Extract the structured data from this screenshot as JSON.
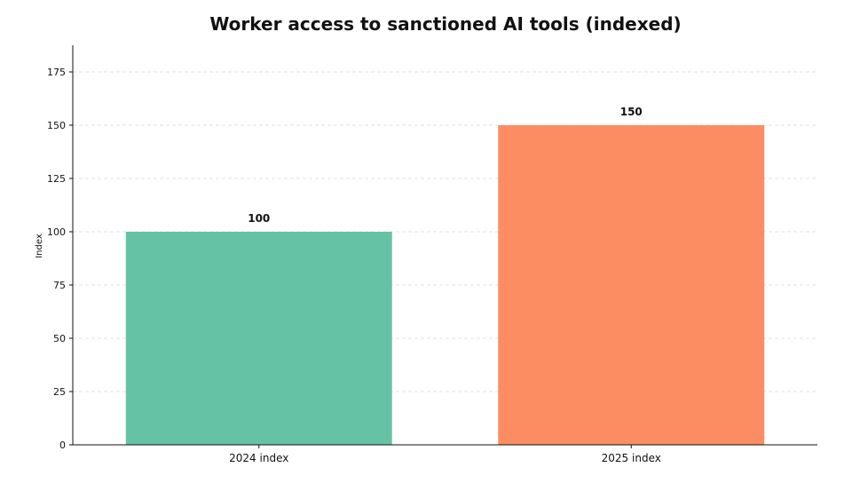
{
  "chart_data": {
    "type": "bar",
    "title": "Worker access to sanctioned AI tools (indexed)",
    "xlabel": "",
    "ylabel": "Index",
    "categories": [
      "2024 index",
      "2025 index"
    ],
    "values": [
      100,
      150
    ],
    "value_labels": [
      "100",
      "150"
    ],
    "colors": [
      "#66c2a5",
      "#fc8d62"
    ],
    "ylim": [
      0,
      187.5
    ],
    "yticks": [
      0,
      25,
      50,
      75,
      100,
      125,
      150,
      175
    ],
    "ytick_labels": [
      "0",
      "25",
      "50",
      "75",
      "100",
      "125",
      "150",
      "175"
    ],
    "grid": true,
    "legend": false
  }
}
